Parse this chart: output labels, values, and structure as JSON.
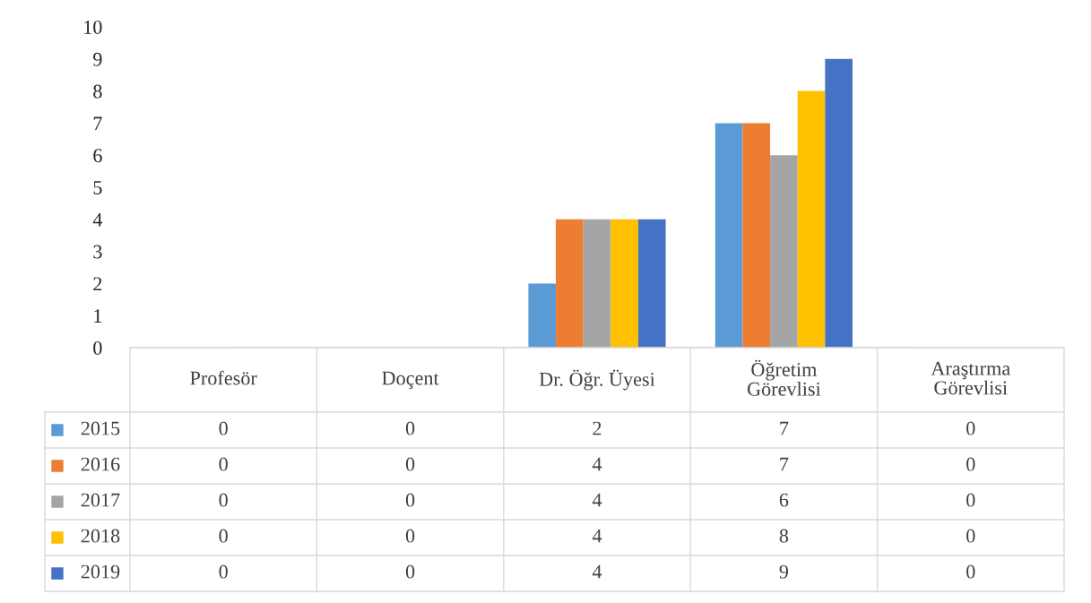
{
  "chart_data": {
    "type": "bar",
    "categories": [
      "Profesör",
      "Doçent",
      "Dr. Öğr. Üyesi",
      "Öğretim\nGörevlisi",
      "Araştırma\nGörevlisi"
    ],
    "series": [
      {
        "name": "2015",
        "color": "#5b9bd5",
        "values": [
          0,
          0,
          2,
          7,
          0
        ]
      },
      {
        "name": "2016",
        "color": "#ed7d31",
        "values": [
          0,
          0,
          4,
          7,
          0
        ]
      },
      {
        "name": "2017",
        "color": "#a5a5a5",
        "values": [
          0,
          0,
          4,
          6,
          0
        ]
      },
      {
        "name": "2018",
        "color": "#ffc000",
        "values": [
          0,
          0,
          4,
          8,
          0
        ]
      },
      {
        "name": "2019",
        "color": "#4472c4",
        "values": [
          0,
          0,
          4,
          9,
          0
        ]
      }
    ],
    "ylim": [
      0,
      10
    ],
    "yticks": [
      0,
      1,
      2,
      3,
      4,
      5,
      6,
      7,
      8,
      9,
      10
    ],
    "grid": false,
    "legend": "bottom",
    "data_labels": true
  }
}
